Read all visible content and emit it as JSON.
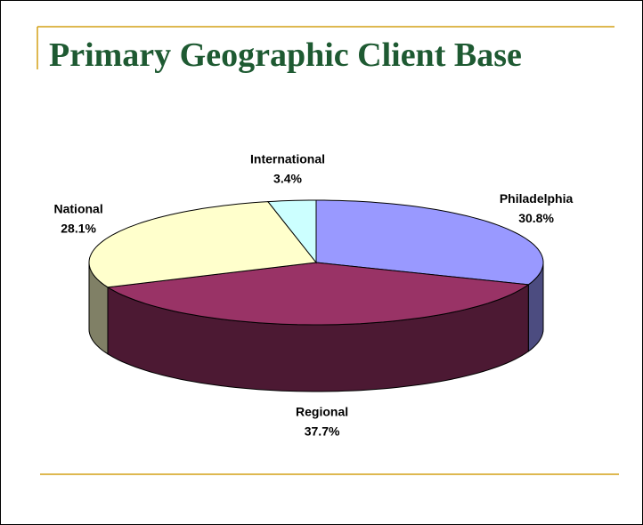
{
  "chart_data": {
    "type": "pie",
    "title": "Primary Geographic Client Base",
    "categories": [
      "Philadelphia",
      "Regional",
      "National",
      "International"
    ],
    "values": [
      30.8,
      37.7,
      28.1,
      3.4
    ],
    "value_labels": [
      "30.8%",
      "37.7%",
      "28.1%",
      "3.4%"
    ],
    "colors": [
      "#9999ff",
      "#993366",
      "#ffffcc",
      "#ccffff"
    ],
    "side_colors": [
      "#4c4c80",
      "#4c1933",
      "#808066",
      "#668080"
    ]
  }
}
